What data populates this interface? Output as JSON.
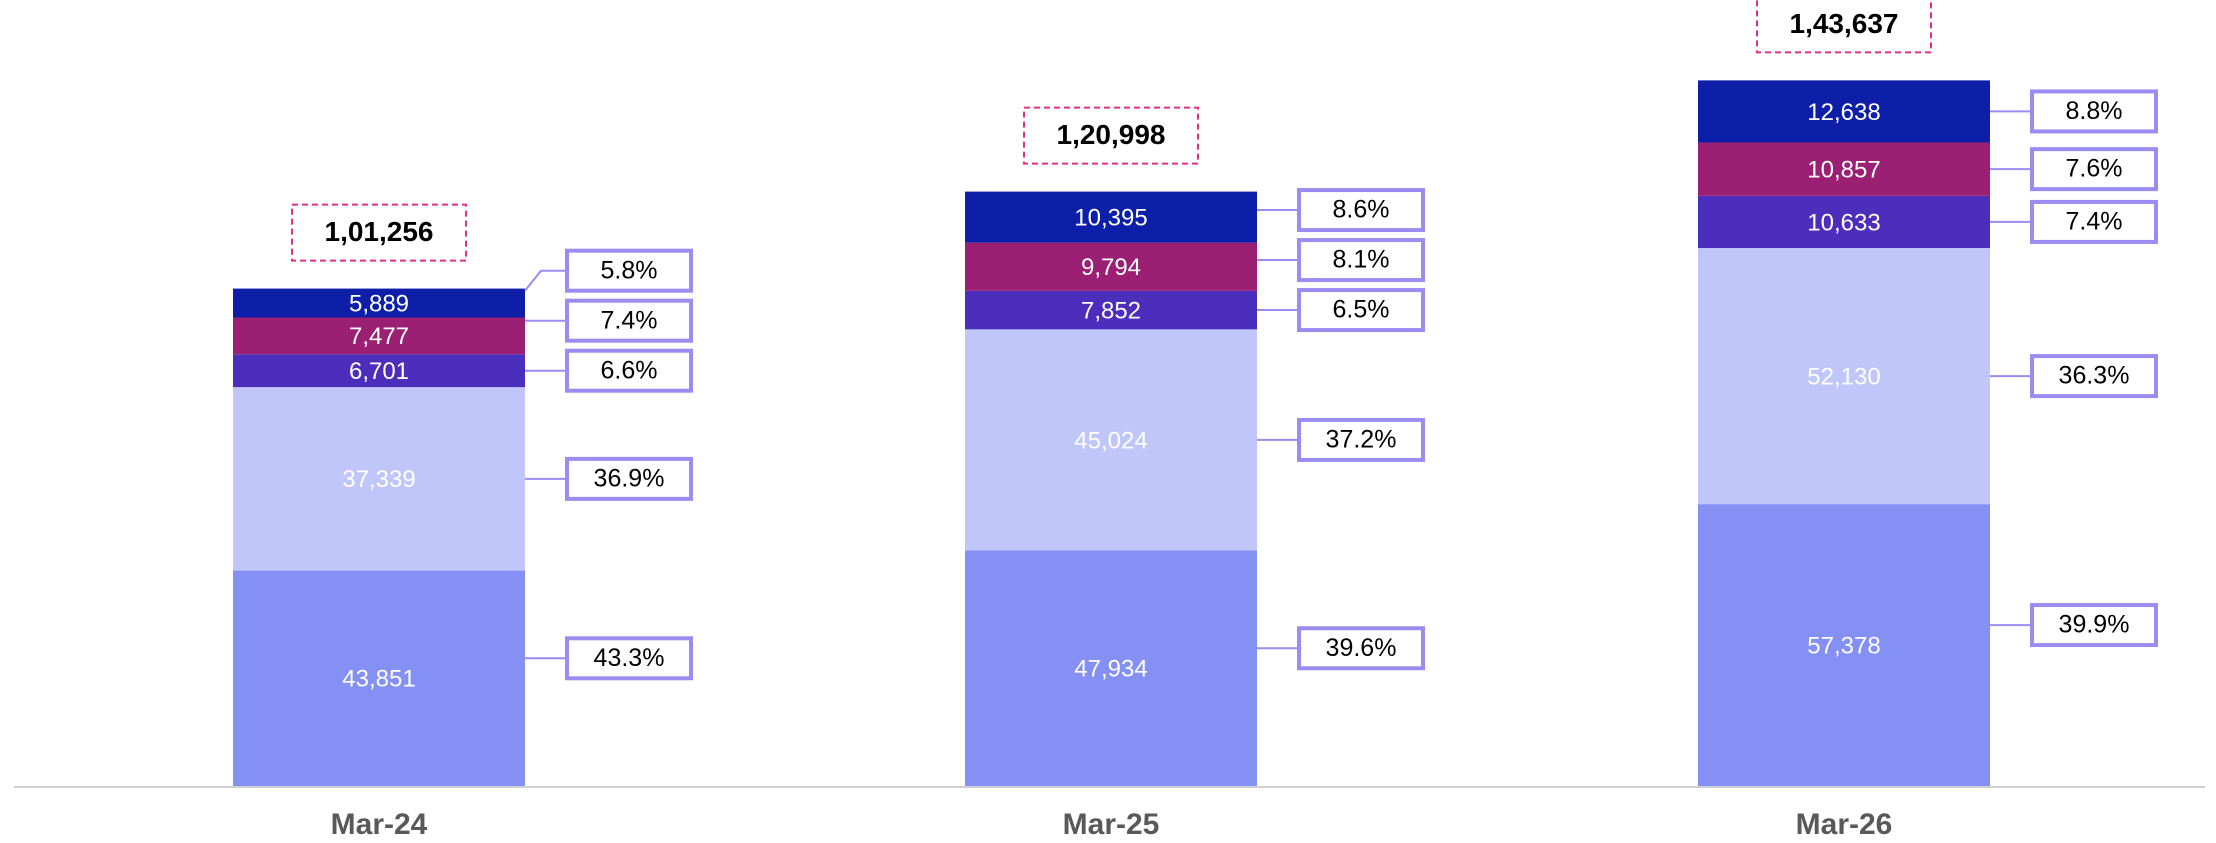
{
  "chart_data": {
    "type": "stacked-bar",
    "categories": [
      "Mar-24",
      "Mar-25",
      "Mar-26"
    ],
    "ylim": [
      0,
      160000
    ],
    "totals": [
      101256,
      120998,
      143637
    ],
    "total_labels": [
      "1,01,256",
      "1,20,998",
      "1,43,637"
    ],
    "series": [
      {
        "color": "#8490f4",
        "values": [
          43851,
          47934,
          57378
        ],
        "value_labels": [
          "43,851",
          "47,934",
          "57,378"
        ],
        "shares": [
          43.3,
          39.6,
          39.9
        ],
        "share_labels": [
          "43.3%",
          "39.6%",
          "39.9%"
        ]
      },
      {
        "color": "#c0c6f9",
        "values": [
          37339,
          45024,
          52130
        ],
        "value_labels": [
          "37,339",
          "45,024",
          "52,130"
        ],
        "shares": [
          36.9,
          37.2,
          36.3
        ],
        "share_labels": [
          "36.9%",
          "37.2%",
          "36.3%"
        ]
      },
      {
        "color": "#4b2ebb",
        "values": [
          6701,
          7852,
          10633
        ],
        "value_labels": [
          "6,701",
          "7,852",
          "10,633"
        ],
        "shares": [
          6.6,
          6.5,
          7.4
        ],
        "share_labels": [
          "6.6%",
          "6.5%",
          "7.4%"
        ]
      },
      {
        "color": "#9b1f72",
        "values": [
          7477,
          9794,
          10857
        ],
        "value_labels": [
          "7,477",
          "9,794",
          "10,857"
        ],
        "shares": [
          7.4,
          8.1,
          7.6
        ],
        "share_labels": [
          "7.4%",
          "8.1%",
          "7.6%"
        ]
      },
      {
        "color": "#0d1fa8",
        "values": [
          5889,
          10395,
          12638
        ],
        "value_labels": [
          "5,889",
          "10,395",
          "12,638"
        ],
        "shares": [
          5.8,
          8.6,
          8.8
        ],
        "share_labels": [
          "5.8%",
          "8.6%",
          "8.8%"
        ]
      }
    ]
  }
}
